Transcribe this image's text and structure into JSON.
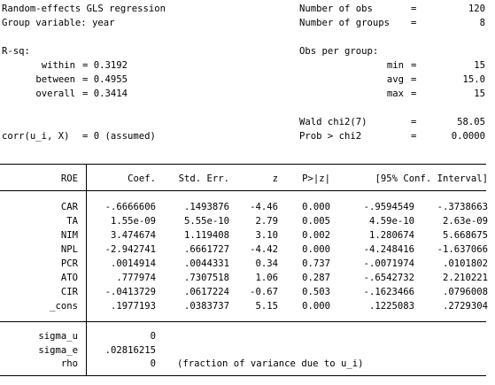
{
  "header_left": {
    "title": "Random-effects GLS regression",
    "group_var_label": "Group variable: year",
    "rsq_label": "R-sq:",
    "rsq": [
      {
        "label": "within",
        "value": "= 0.3192"
      },
      {
        "label": "between",
        "value": "= 0.4955"
      },
      {
        "label": "overall",
        "value": "= 0.3414"
      }
    ],
    "corr_label": "corr(u_i, X)",
    "corr_value": "= 0 (assumed)"
  },
  "header_right": {
    "n_obs_label": "Number of obs",
    "n_obs": "120",
    "n_groups_label": "Number of groups",
    "n_groups": "8",
    "obs_per_group_label": "Obs per group:",
    "opg": [
      {
        "label": "min",
        "value": "15"
      },
      {
        "label": "avg",
        "value": "15.0"
      },
      {
        "label": "max",
        "value": "15"
      }
    ],
    "wald_label": "Wald chi2(7)",
    "wald": "58.05",
    "prob_label": "Prob > chi2",
    "prob": "0.0000",
    "eq": "="
  },
  "table": {
    "depvar": "ROE",
    "columns": [
      "Coef.",
      "Std. Err.",
      "z",
      "P>|z|",
      "[95% Conf. Interval]"
    ],
    "rows": [
      {
        "var": "CAR",
        "coef": "-.6666606",
        "se": ".1493876",
        "z": "-4.46",
        "p": "0.000",
        "lo": "-.9594549",
        "hi": "-.3738663"
      },
      {
        "var": "TA",
        "coef": "1.55e-09",
        "se": "5.55e-10",
        "z": "2.79",
        "p": "0.005",
        "lo": "4.59e-10",
        "hi": "2.63e-09"
      },
      {
        "var": "NIM",
        "coef": "3.474674",
        "se": "1.119408",
        "z": "3.10",
        "p": "0.002",
        "lo": "1.280674",
        "hi": "5.668675"
      },
      {
        "var": "NPL",
        "coef": "-2.942741",
        "se": ".6661727",
        "z": "-4.42",
        "p": "0.000",
        "lo": "-4.248416",
        "hi": "-1.637066"
      },
      {
        "var": "PCR",
        "coef": ".0014914",
        "se": ".0044331",
        "z": "0.34",
        "p": "0.737",
        "lo": "-.0071974",
        "hi": ".0101802"
      },
      {
        "var": "ATO",
        "coef": ".777974",
        "se": ".7307518",
        "z": "1.06",
        "p": "0.287",
        "lo": "-.6542732",
        "hi": "2.210221"
      },
      {
        "var": "CIR",
        "coef": "-.0413729",
        "se": ".0617224",
        "z": "-0.67",
        "p": "0.503",
        "lo": "-.1623466",
        "hi": ".0796008"
      },
      {
        "var": "_cons",
        "coef": ".1977193",
        "se": ".0383737",
        "z": "5.15",
        "p": "0.000",
        "lo": ".1225083",
        "hi": ".2729304"
      }
    ],
    "sigma": [
      {
        "label": "sigma_u",
        "value": "0"
      },
      {
        "label": "sigma_e",
        "value": ".02816215"
      },
      {
        "label": "rho",
        "value": "0"
      }
    ],
    "rho_note": "(fraction of variance due to u_i)"
  }
}
